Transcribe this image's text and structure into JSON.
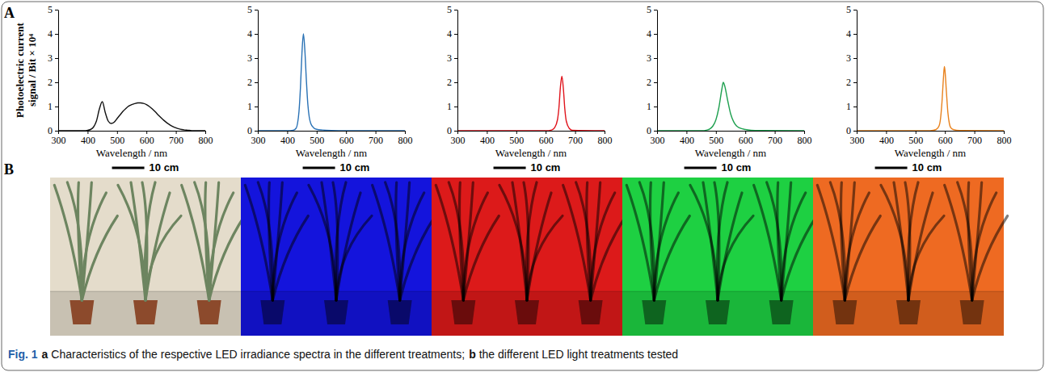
{
  "chart_data": [
    {
      "type": "line",
      "color": "#111111",
      "xlabel": "Wavelength / nm",
      "ylabel": "Photoelectric current signal / Bit × 10⁴",
      "x": [
        300,
        390,
        400,
        410,
        420,
        430,
        440,
        450,
        460,
        470,
        480,
        490,
        500,
        510,
        520,
        530,
        540,
        550,
        560,
        570,
        580,
        590,
        600,
        610,
        620,
        630,
        640,
        650,
        660,
        670,
        680,
        690,
        700,
        710,
        720,
        730,
        740,
        750,
        760,
        800
      ],
      "values": [
        0,
        0,
        0.02,
        0.05,
        0.15,
        0.4,
        0.9,
        1.2,
        0.75,
        0.4,
        0.3,
        0.35,
        0.5,
        0.65,
        0.8,
        0.92,
        1.02,
        1.08,
        1.12,
        1.15,
        1.15,
        1.13,
        1.08,
        1.0,
        0.9,
        0.78,
        0.65,
        0.53,
        0.42,
        0.32,
        0.24,
        0.17,
        0.12,
        0.08,
        0.05,
        0.03,
        0.02,
        0.01,
        0,
        0
      ],
      "xlim": [
        300,
        800
      ],
      "ylim": [
        0,
        5
      ],
      "xticks": [
        300,
        400,
        500,
        600,
        700,
        800
      ],
      "yticks": [
        0,
        1,
        2,
        3,
        4,
        5
      ]
    },
    {
      "type": "line",
      "color": "#2a72b5",
      "xlabel": "Wavelength / nm",
      "x": [
        300,
        400,
        420,
        430,
        435,
        440,
        445,
        450,
        455,
        460,
        465,
        470,
        475,
        480,
        490,
        500,
        520,
        550,
        600,
        800
      ],
      "values": [
        0,
        0,
        0.02,
        0.1,
        0.3,
        0.8,
        1.8,
        3.2,
        4.0,
        3.3,
        2.1,
        1.1,
        0.55,
        0.3,
        0.12,
        0.06,
        0.03,
        0.01,
        0,
        0
      ],
      "xlim": [
        300,
        800
      ],
      "ylim": [
        0,
        5
      ],
      "xticks": [
        300,
        400,
        500,
        600,
        700,
        800
      ],
      "yticks": [
        0,
        1,
        2,
        3,
        4,
        5
      ]
    },
    {
      "type": "line",
      "color": "#e0141c",
      "xlabel": "Wavelength / nm",
      "x": [
        300,
        600,
        620,
        630,
        640,
        645,
        650,
        655,
        660,
        665,
        670,
        680,
        690,
        800
      ],
      "values": [
        0,
        0,
        0.03,
        0.12,
        0.45,
        0.95,
        1.8,
        2.25,
        1.75,
        0.9,
        0.4,
        0.1,
        0.02,
        0
      ],
      "xlim": [
        300,
        800
      ],
      "ylim": [
        0,
        5
      ],
      "xticks": [
        300,
        400,
        500,
        600,
        700,
        800
      ],
      "yticks": [
        0,
        1,
        2,
        3,
        4,
        5
      ]
    },
    {
      "type": "line",
      "color": "#1fa050",
      "xlabel": "Wavelength / nm",
      "x": [
        300,
        450,
        470,
        480,
        490,
        500,
        510,
        520,
        525,
        530,
        540,
        550,
        560,
        570,
        580,
        600,
        620,
        650,
        800
      ],
      "values": [
        0,
        0,
        0.03,
        0.08,
        0.2,
        0.45,
        0.95,
        1.7,
        2.0,
        1.85,
        1.25,
        0.7,
        0.38,
        0.2,
        0.12,
        0.05,
        0.02,
        0.01,
        0
      ],
      "xlim": [
        300,
        800
      ],
      "ylim": [
        0,
        5
      ],
      "xticks": [
        300,
        400,
        500,
        600,
        700,
        800
      ],
      "yticks": [
        0,
        1,
        2,
        3,
        4,
        5
      ]
    },
    {
      "type": "line",
      "color": "#e8821e",
      "xlabel": "Wavelength / nm",
      "x": [
        300,
        550,
        570,
        580,
        585,
        590,
        595,
        598,
        600,
        605,
        610,
        615,
        620,
        630,
        650,
        800
      ],
      "values": [
        0,
        0,
        0.05,
        0.2,
        0.5,
        1.2,
        2.2,
        2.65,
        2.5,
        1.6,
        0.75,
        0.3,
        0.12,
        0.04,
        0.01,
        0
      ],
      "xlim": [
        300,
        800
      ],
      "ylim": [
        0,
        5
      ],
      "xticks": [
        300,
        400,
        500,
        600,
        700,
        800
      ],
      "yticks": [
        0,
        1,
        2,
        3,
        4,
        5
      ]
    }
  ],
  "panel_labels": [
    "A",
    "B"
  ],
  "photos": [
    {
      "scale_bar": "10 cm",
      "color": "#e4dccb"
    },
    {
      "scale_bar": "10 cm",
      "color": "#1414dc"
    },
    {
      "scale_bar": "10 cm",
      "color": "#dc1a1a"
    },
    {
      "scale_bar": "10 cm",
      "color": "#1ed042"
    },
    {
      "scale_bar": "10 cm",
      "color": "#ee6a22"
    }
  ],
  "caption": {
    "label": "Fig. 1",
    "parts": [
      {
        "letter": "a",
        "text": "Characteristics of the respective LED irradiance spectra in the different treatments;"
      },
      {
        "letter": "b",
        "text": "the different LED light treatments tested"
      }
    ]
  }
}
